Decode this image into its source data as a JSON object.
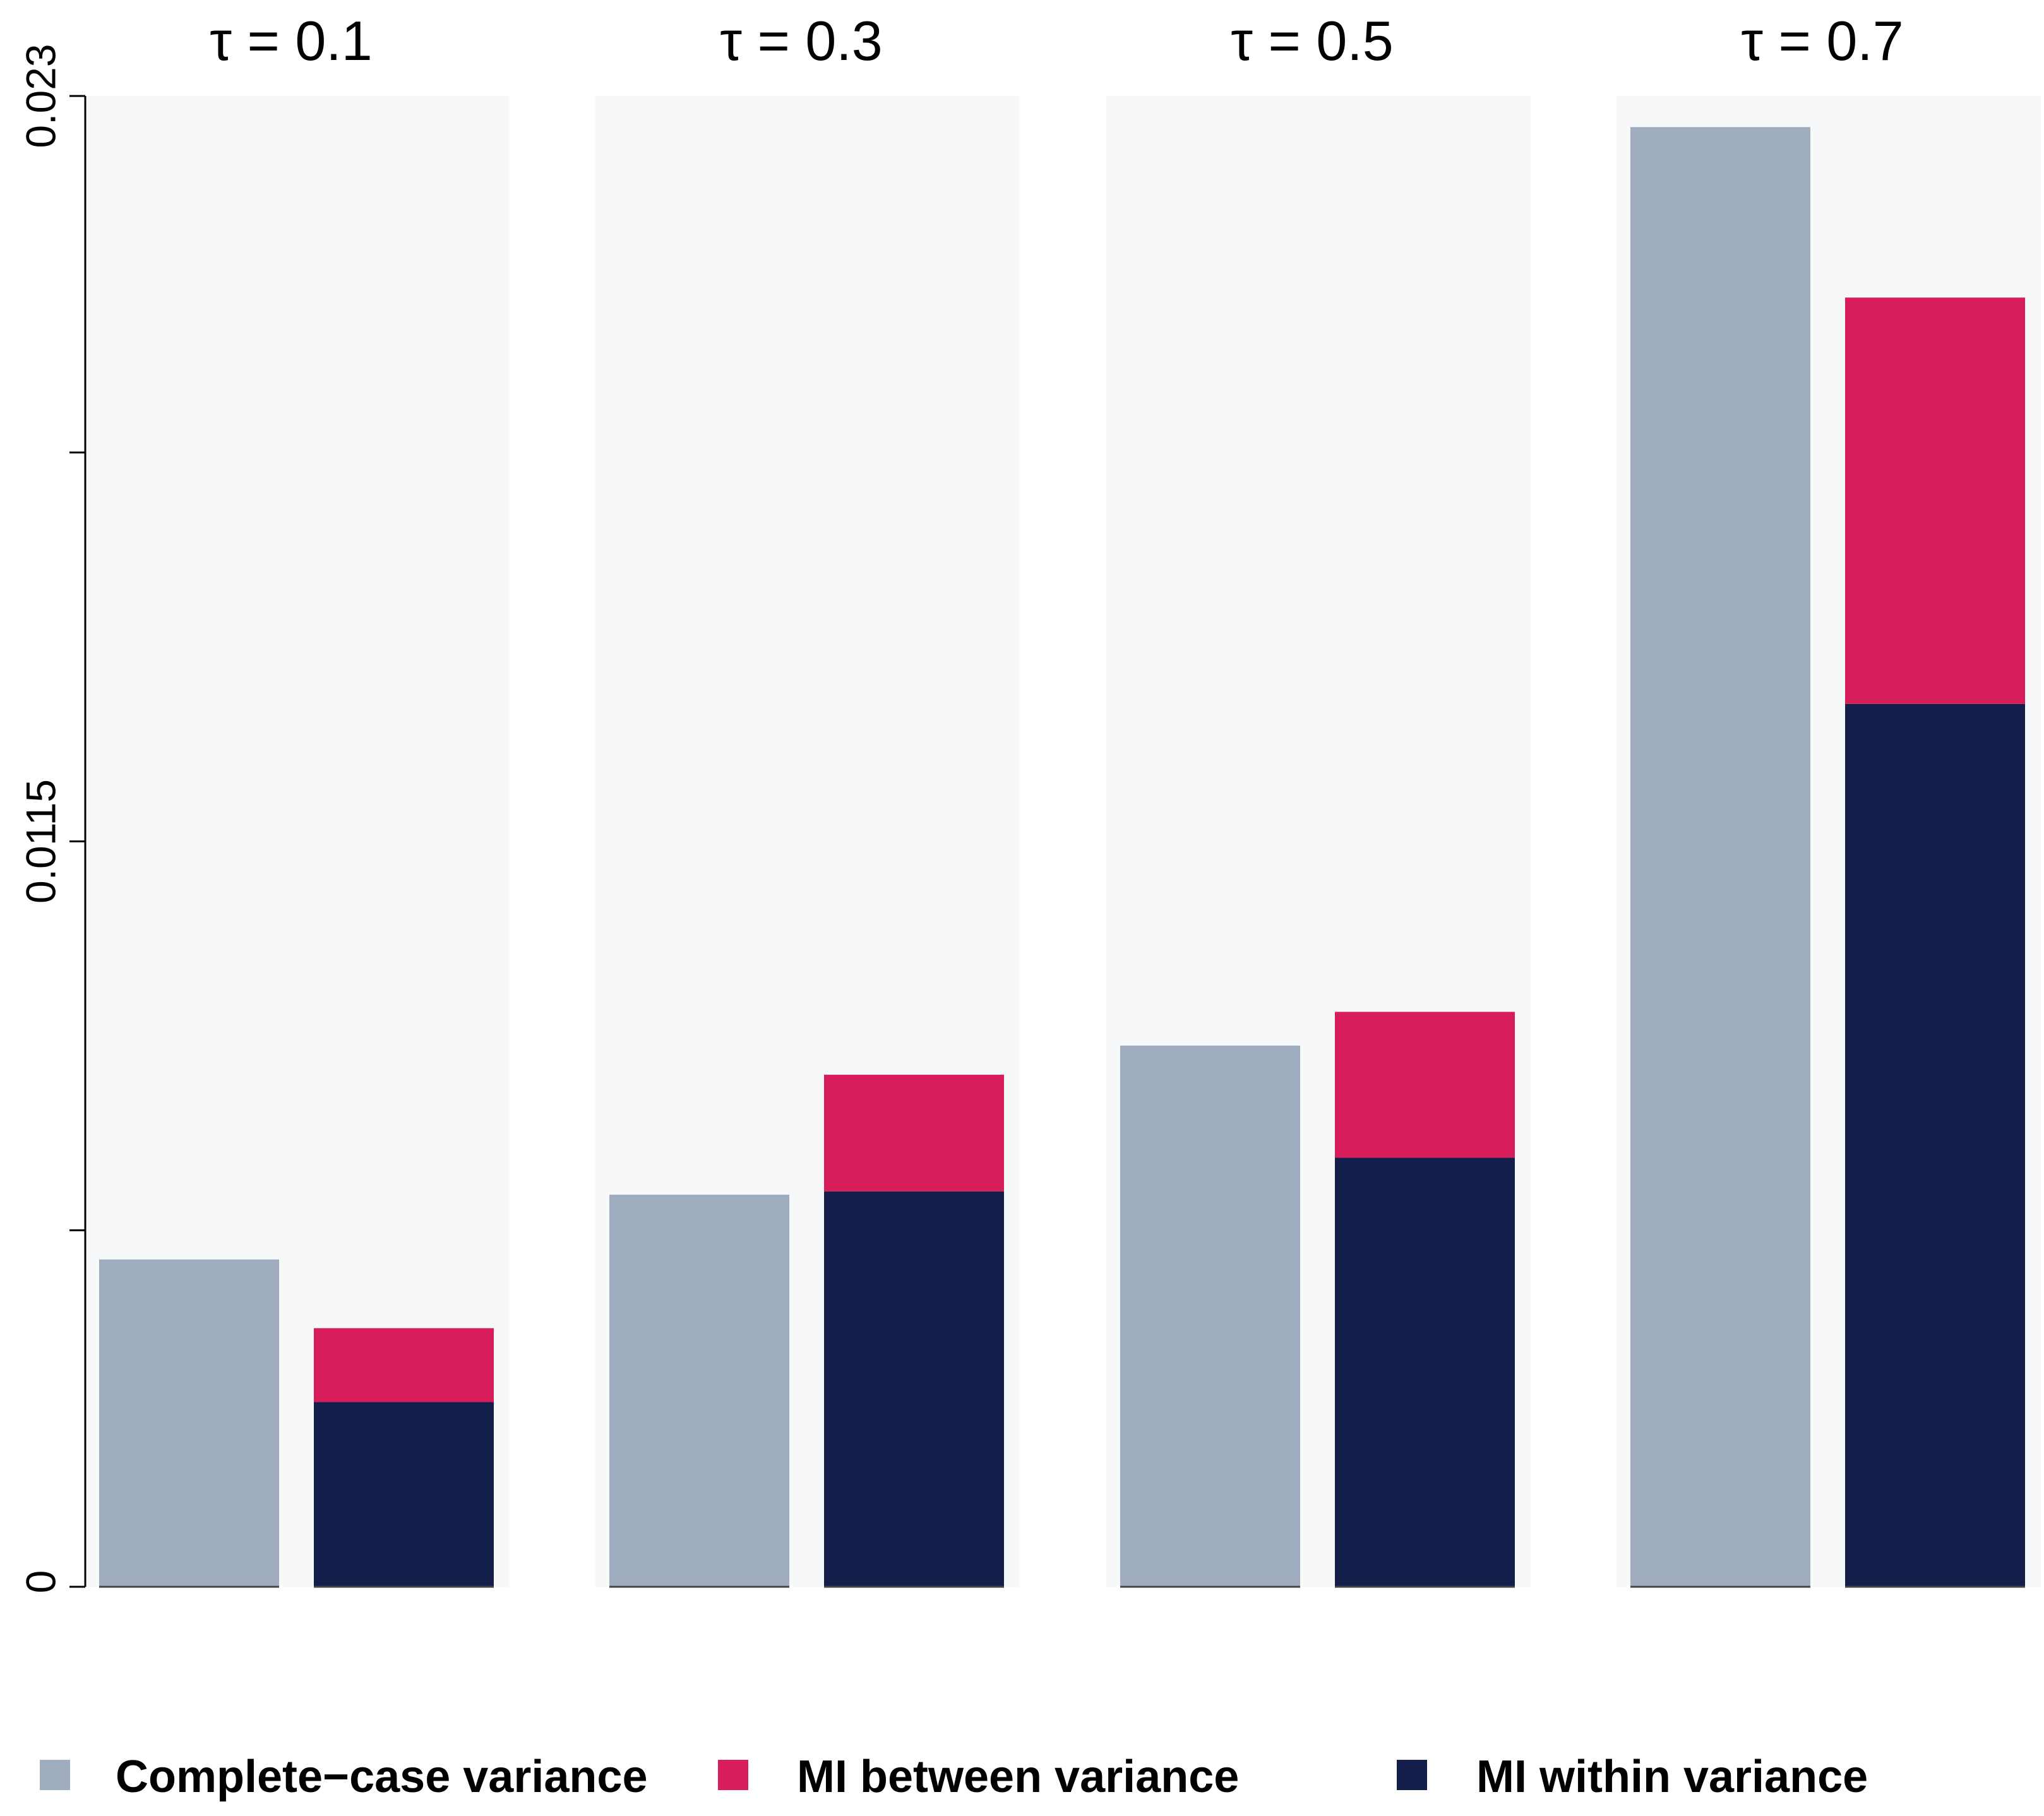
{
  "chart_data": {
    "type": "bar",
    "stacked_groups": true,
    "panels": [
      {
        "title": "τ = 0.1",
        "complete_case": 0.00505,
        "mi_within": 0.00285,
        "mi_between": 0.00114
      },
      {
        "title": "τ = 0.3",
        "complete_case": 0.00605,
        "mi_within": 0.0061,
        "mi_between": 0.0018
      },
      {
        "title": "τ = 0.5",
        "complete_case": 0.00835,
        "mi_within": 0.00662,
        "mi_between": 0.00225
      },
      {
        "title": "τ = 0.7",
        "complete_case": 0.02252,
        "mi_within": 0.01362,
        "mi_between": 0.00627
      }
    ],
    "series": [
      {
        "key": "complete_case",
        "name": "Complete−case variance",
        "color": "#9eacbe"
      },
      {
        "key": "mi_between",
        "name": "MI between variance",
        "color": "#d81d5b"
      },
      {
        "key": "mi_within",
        "name": "MI within variance",
        "color": "#141e4b"
      }
    ],
    "y_ticks": [
      0,
      0.0055,
      0.0115,
      0.0175,
      0.023
    ],
    "y_tick_labels": [
      "0",
      "",
      "0.0115",
      "",
      "0.023"
    ],
    "ylim": [
      0,
      0.023
    ],
    "xlabel": "",
    "ylabel": "",
    "panel_background": "#f7f8fa",
    "legend_position": "bottom"
  }
}
